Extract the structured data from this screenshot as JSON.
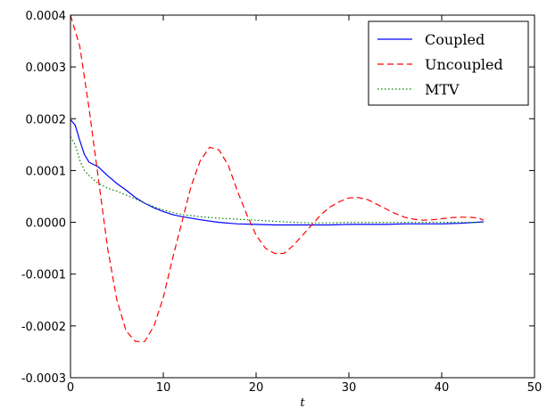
{
  "chart_data": {
    "type": "line",
    "title": "",
    "xlabel": "t",
    "ylabel": "",
    "xlim": [
      0,
      50
    ],
    "ylim": [
      -0.0003,
      0.0004
    ],
    "xticks": [
      0,
      10,
      20,
      30,
      40,
      50
    ],
    "xtick_labels": [
      "0",
      "10",
      "20",
      "30",
      "40",
      "50"
    ],
    "yticks": [
      -0.0003,
      -0.0002,
      -0.0001,
      0.0,
      0.0001,
      0.0002,
      0.0003,
      0.0004
    ],
    "ytick_labels": [
      "-0.0003",
      "-0.0002",
      "-0.0001",
      "0.0000",
      "0.0001",
      "0.0002",
      "0.0003",
      "0.0004"
    ],
    "grid": false,
    "legend_position": "top-right",
    "series": [
      {
        "name": "Coupled",
        "color": "#0000ff",
        "style": "solid",
        "x": [
          0,
          0.5,
          1,
          1.5,
          2,
          3,
          4,
          5,
          6,
          7,
          8,
          9,
          10,
          11,
          12,
          14,
          16,
          18,
          20,
          22,
          24,
          26,
          28,
          30,
          32,
          34,
          36,
          38,
          40,
          42,
          44.5
        ],
        "y": [
          0.000198,
          0.000188,
          0.000158,
          0.000131,
          0.000116,
          0.000107,
          9e-05,
          7.5e-05,
          6.2e-05,
          4.8e-05,
          3.7e-05,
          2.8e-05,
          2.1e-05,
          1.5e-05,
          1.1e-05,
          5e-06,
          0.0,
          -3e-06,
          -4e-06,
          -5e-06,
          -5e-06,
          -5e-06,
          -5e-06,
          -4e-06,
          -4e-06,
          -4e-06,
          -3e-06,
          -3e-06,
          -3e-06,
          -2e-06,
          1e-06
        ]
      },
      {
        "name": "Uncoupled",
        "color": "#ff0000",
        "style": "dashed",
        "x": [
          0,
          1,
          2,
          3,
          4,
          5,
          6,
          7,
          8,
          9,
          10,
          11,
          12,
          13,
          14,
          15,
          16,
          17,
          18,
          19,
          20,
          21,
          22,
          23,
          24,
          25,
          26,
          27,
          28,
          29,
          30,
          31,
          32,
          33,
          34,
          35,
          36,
          37,
          38,
          39,
          40,
          41,
          42,
          43,
          44,
          44.5
        ],
        "y": [
          0.0004,
          0.00034,
          0.00022,
          8.5e-05,
          -5e-05,
          -0.00015,
          -0.00021,
          -0.00023,
          -0.00023,
          -0.0002,
          -0.000145,
          -7e-05,
          0.0,
          7e-05,
          0.00012,
          0.000145,
          0.00014,
          0.00011,
          6e-05,
          1.5e-05,
          -2.5e-05,
          -5e-05,
          -6e-05,
          -6e-05,
          -4.5e-05,
          -2.5e-05,
          -5e-06,
          1.5e-05,
          3e-05,
          4e-05,
          4.7e-05,
          4.8e-05,
          4.4e-05,
          3.5e-05,
          2.6e-05,
          1.7e-05,
          1e-05,
          6e-06,
          4e-06,
          5e-06,
          7e-06,
          9e-06,
          1e-05,
          1e-05,
          8e-06,
          4e-06
        ]
      },
      {
        "name": "MTV",
        "color": "#008000",
        "style": "dotted",
        "x": [
          0,
          0.5,
          1,
          1.5,
          2,
          3,
          4,
          5,
          6,
          7,
          8,
          9,
          10,
          11,
          12,
          14,
          16,
          18,
          20,
          22,
          24,
          26,
          28,
          30,
          32,
          34,
          36,
          38,
          40,
          42,
          44.5
        ],
        "y": [
          0.000165,
          0.00015,
          0.00012,
          0.0001,
          9e-05,
          7.5e-05,
          6.6e-05,
          6e-05,
          5.3e-05,
          4.5e-05,
          3.7e-05,
          3e-05,
          2.4e-05,
          1.9e-05,
          1.5e-05,
          1.1e-05,
          8e-06,
          6e-06,
          4e-06,
          2e-06,
          0.0,
          -1e-06,
          -1e-06,
          0.0,
          0.0,
          0.0,
          0.0,
          0.0,
          0.0,
          0.0,
          0.0
        ]
      }
    ]
  }
}
